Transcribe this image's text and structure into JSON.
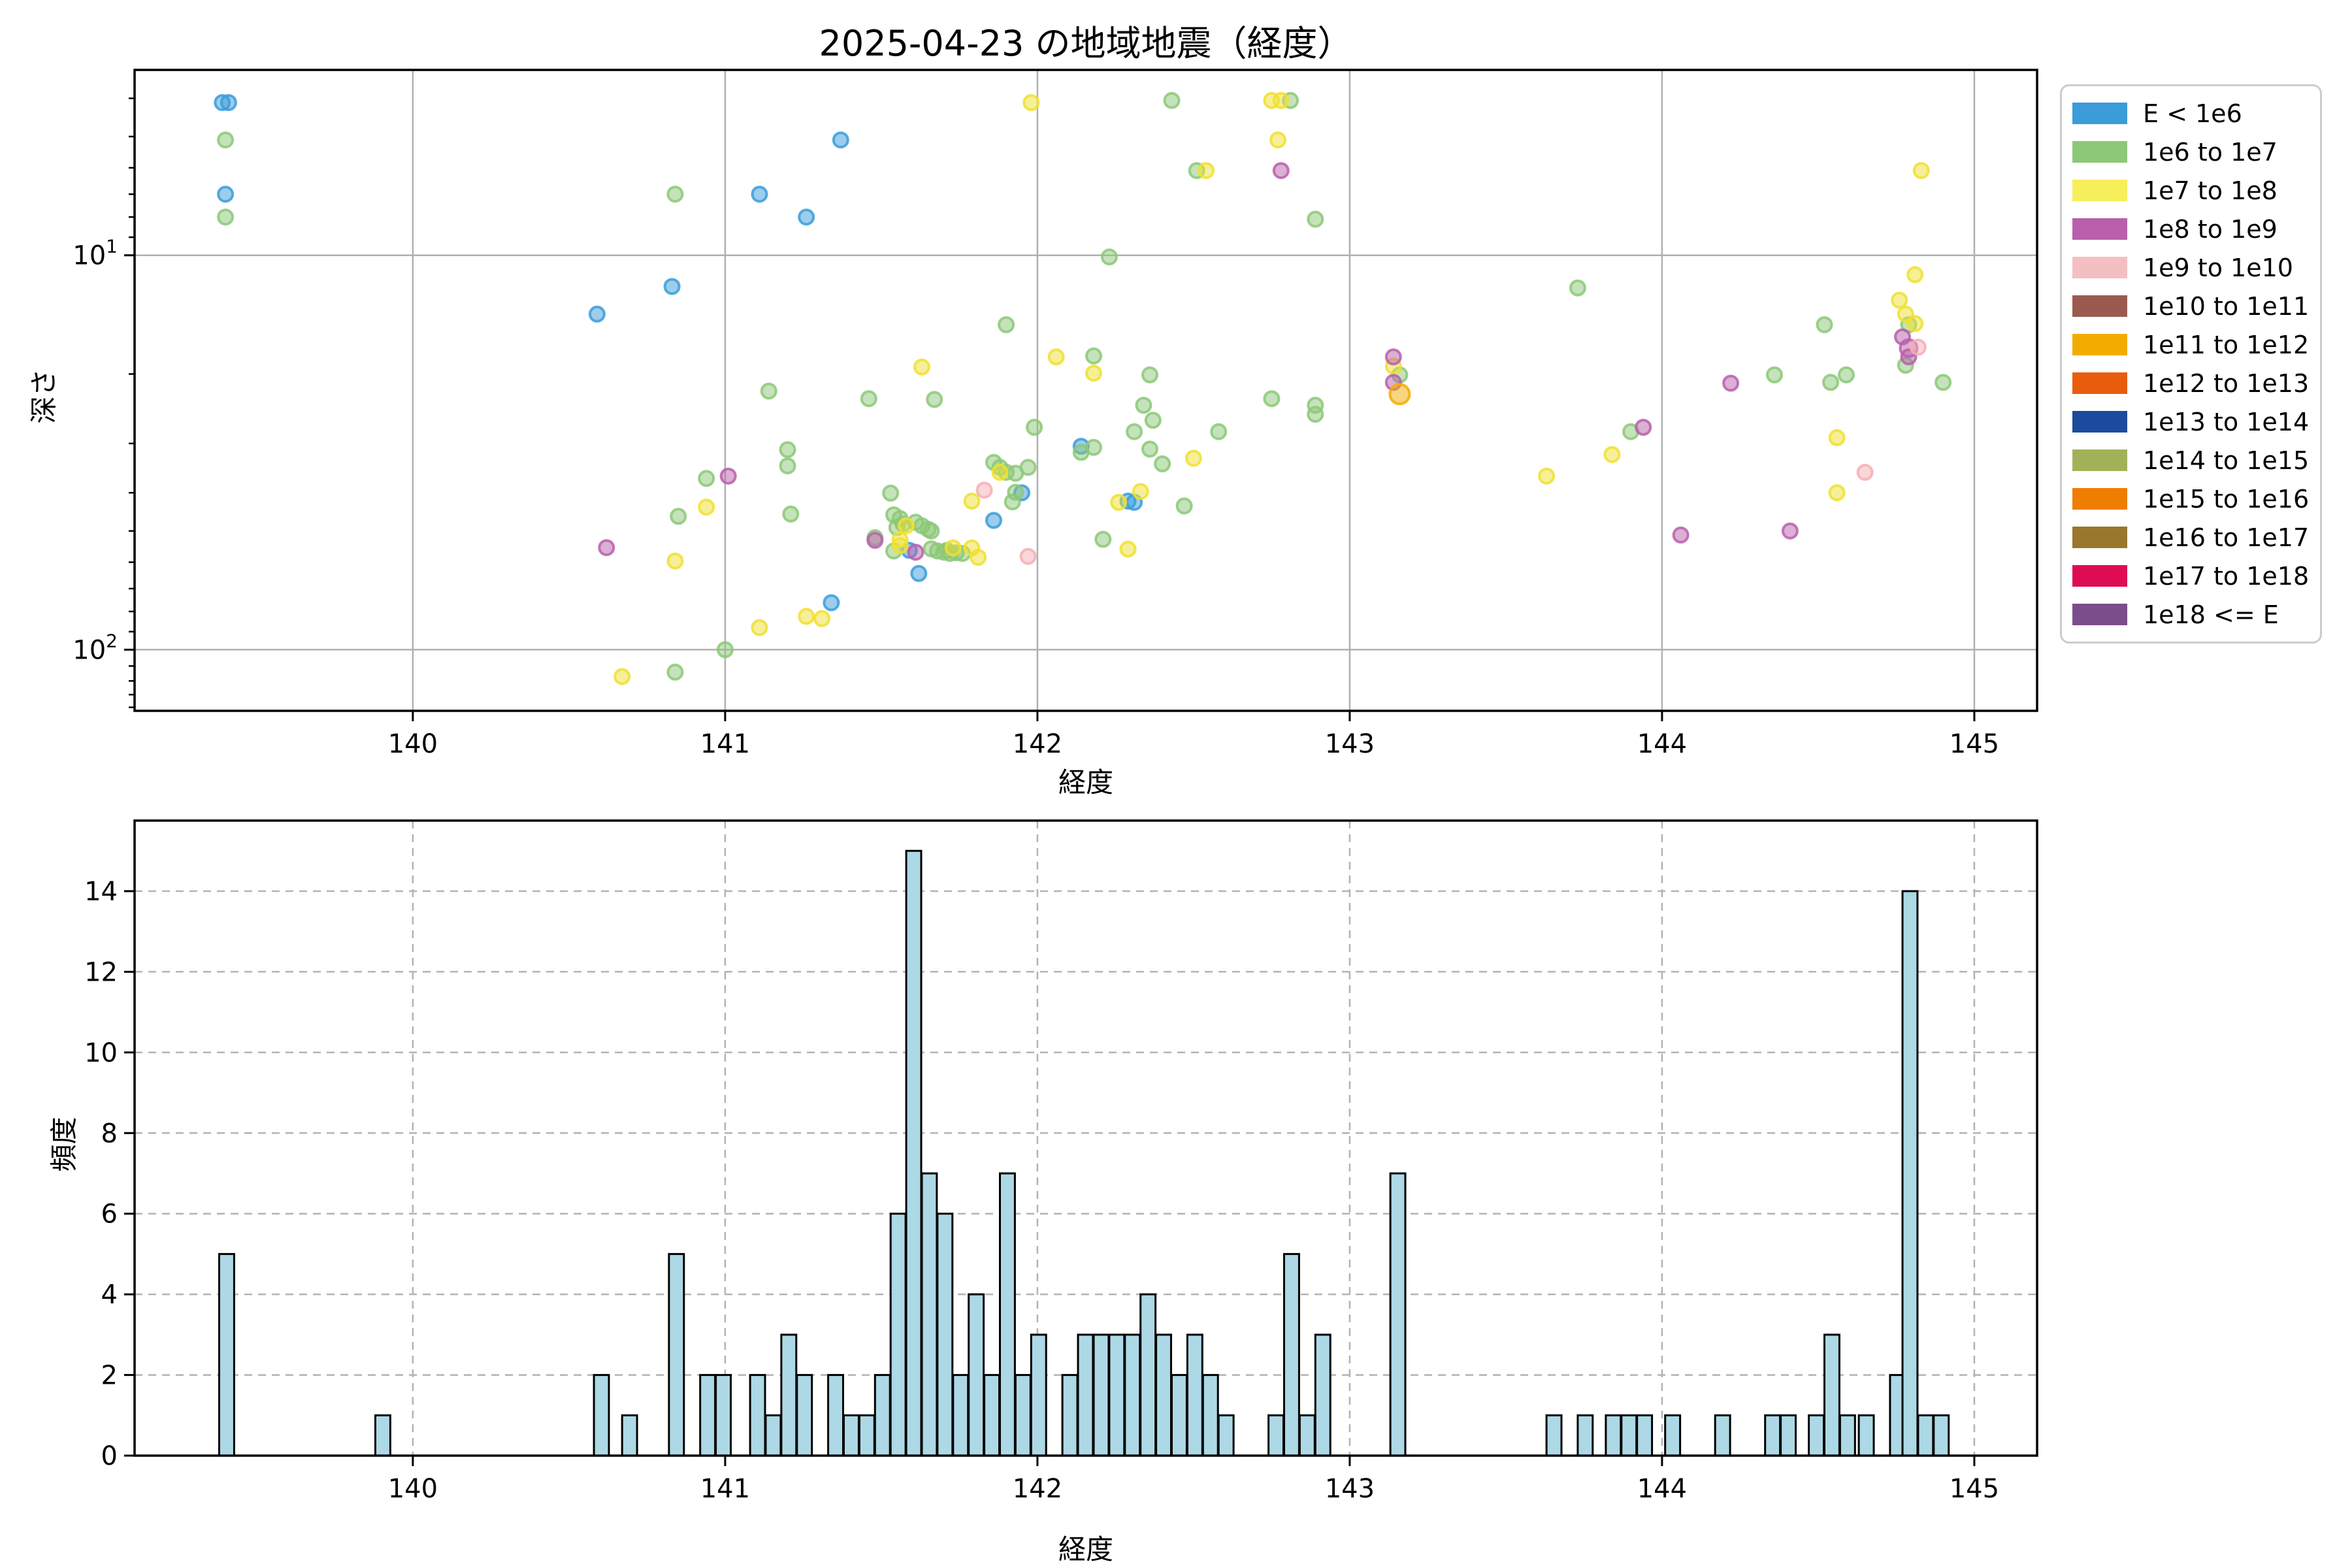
{
  "figure": {
    "title": "2025-04-23 の地域地震（経度）",
    "background": "#ffffff"
  },
  "scatter": {
    "xlabel": "経度",
    "ylabel": "深さ"
  },
  "hist": {
    "xlabel": "経度",
    "ylabel": "頻度"
  },
  "legend": {
    "items": [
      {
        "label": "E < 1e6",
        "color": "#3B9CD9"
      },
      {
        "label": "1e6 to 1e7",
        "color": "#8CC878"
      },
      {
        "label": "1e7 to 1e8",
        "color": "#F7EE5C"
      },
      {
        "label": "1e8 to 1e9",
        "color": "#B95FAC"
      },
      {
        "label": "1e9 to 1e10",
        "color": "#F4BFC2"
      },
      {
        "label": "1e10 to 1e11",
        "color": "#9B5A50"
      },
      {
        "label": "1e11 to 1e12",
        "color": "#F2AC00"
      },
      {
        "label": "1e12 to 1e13",
        "color": "#E85D0D"
      },
      {
        "label": "1e13 to 1e14",
        "color": "#1C4A9C"
      },
      {
        "label": "1e14 to 1e15",
        "color": "#A2B259"
      },
      {
        "label": "1e15 to 1e16",
        "color": "#EF7D00"
      },
      {
        "label": "1e16 to 1e17",
        "color": "#99782D"
      },
      {
        "label": "1e17 to 1e18",
        "color": "#DE0C54"
      },
      {
        "label": "1e18 <= E",
        "color": "#7B4D8B"
      }
    ]
  },
  "chart_data": [
    {
      "type": "scatter",
      "title": "2025-04-23 の地域地震（経度）",
      "xlabel": "経度",
      "ylabel": "深さ",
      "xlim": [
        139.109,
        145.201
      ],
      "y_log": true,
      "y_inverted": true,
      "ylim_exp": [
        0.53,
        2.155
      ],
      "x_ticks": [
        140,
        141,
        142,
        143,
        144,
        145
      ],
      "y_major_ticks": [
        {
          "exp": 1,
          "label": "10¹"
        },
        {
          "exp": 2,
          "label": "10²"
        }
      ],
      "y_minor_tick_values": [
        4,
        5,
        6,
        7,
        8,
        9,
        20,
        30,
        40,
        50,
        60,
        70,
        80,
        90,
        110,
        120,
        130,
        140
      ],
      "grid": "solid",
      "legend_position": "upper right outside",
      "series": [
        {
          "name": "E < 1e6",
          "color": "#3B9CD9",
          "points": [
            [
              139.39,
              4.1
            ],
            [
              139.41,
              4.1
            ],
            [
              139.4,
              7.0
            ],
            [
              140.59,
              14.1
            ],
            [
              140.83,
              12.0
            ],
            [
              141.11,
              7.0
            ],
            [
              141.26,
              8.0
            ],
            [
              141.37,
              5.1
            ],
            [
              141.34,
              76.0
            ],
            [
              141.59,
              56.0
            ],
            [
              141.62,
              64.1
            ],
            [
              141.86,
              47.0
            ],
            [
              141.95,
              40.0
            ],
            [
              142.14,
              30.5
            ],
            [
              142.29,
              42.0
            ],
            [
              142.31,
              42.3
            ]
          ]
        },
        {
          "name": "1e6 to 1e7",
          "color": "#8CC878",
          "points": [
            [
              139.4,
              5.1
            ],
            [
              139.4,
              8.0
            ],
            [
              140.84,
              7.0
            ],
            [
              140.85,
              45.9
            ],
            [
              140.84,
              114
            ],
            [
              140.94,
              36.8
            ],
            [
              141.0,
              100
            ],
            [
              141.14,
              22.1
            ],
            [
              141.2,
              31.1
            ],
            [
              141.2,
              34.2
            ],
            [
              141.21,
              45.3
            ],
            [
              141.46,
              23.1
            ],
            [
              141.48,
              52.0
            ],
            [
              141.53,
              40.1
            ],
            [
              141.54,
              45.5
            ],
            [
              141.55,
              49.0
            ],
            [
              141.56,
              46.5
            ],
            [
              141.57,
              48.0
            ],
            [
              141.54,
              56.2
            ],
            [
              141.61,
              47.5
            ],
            [
              141.63,
              48.5
            ],
            [
              141.65,
              49.5
            ],
            [
              141.66,
              50.0
            ],
            [
              141.66,
              55.5
            ],
            [
              141.68,
              56.2
            ],
            [
              141.7,
              56.6
            ],
            [
              141.71,
              56.0
            ],
            [
              141.72,
              57.0
            ],
            [
              141.74,
              56.8
            ],
            [
              141.76,
              57.0
            ],
            [
              141.67,
              23.2
            ],
            [
              141.86,
              33.5
            ],
            [
              141.88,
              34.5
            ],
            [
              141.9,
              35.5
            ],
            [
              141.93,
              35.7
            ],
            [
              141.97,
              34.5
            ],
            [
              141.9,
              15.0
            ],
            [
              141.99,
              27.3
            ],
            [
              141.92,
              42.2
            ],
            [
              141.93,
              39.9
            ],
            [
              142.14,
              31.6
            ],
            [
              142.18,
              30.7
            ],
            [
              142.21,
              52.5
            ],
            [
              142.18,
              18.0
            ],
            [
              142.23,
              10.1
            ],
            [
              142.34,
              24.0
            ],
            [
              142.36,
              20.1
            ],
            [
              142.36,
              31.0
            ],
            [
              142.37,
              26.2
            ],
            [
              142.31,
              28.0
            ],
            [
              142.4,
              33.8
            ],
            [
              142.43,
              4.05
            ],
            [
              142.47,
              43.2
            ],
            [
              142.51,
              6.1
            ],
            [
              142.58,
              28.0
            ],
            [
              142.75,
              23.1
            ],
            [
              142.81,
              4.05
            ],
            [
              142.89,
              8.1
            ],
            [
              142.89,
              24.0
            ],
            [
              142.89,
              25.3
            ],
            [
              143.16,
              20.1
            ],
            [
              143.73,
              12.1
            ],
            [
              143.9,
              28.0
            ],
            [
              144.36,
              20.1
            ],
            [
              144.52,
              15.0
            ],
            [
              144.54,
              21.0
            ],
            [
              144.59,
              20.1
            ],
            [
              144.79,
              15.0
            ],
            [
              144.78,
              19.0
            ],
            [
              144.9,
              21.0
            ]
          ]
        },
        {
          "name": "1e7 to 1e8",
          "color": "#F0E030",
          "points": [
            [
              140.67,
              117
            ],
            [
              140.84,
              59.6
            ],
            [
              140.94,
              43.5
            ],
            [
              141.11,
              87.9
            ],
            [
              141.26,
              82.3
            ],
            [
              141.31,
              83.4
            ],
            [
              141.58,
              48.5
            ],
            [
              141.56,
              52.6
            ],
            [
              141.56,
              54.5
            ],
            [
              141.63,
              19.2
            ],
            [
              141.73,
              55.2
            ],
            [
              141.79,
              55.2
            ],
            [
              141.81,
              58.3
            ],
            [
              141.79,
              42.0
            ],
            [
              141.88,
              35.5
            ],
            [
              141.98,
              4.1
            ],
            [
              142.06,
              18.1
            ],
            [
              142.18,
              19.9
            ],
            [
              142.26,
              42.3
            ],
            [
              142.29,
              55.6
            ],
            [
              142.33,
              39.7
            ],
            [
              142.5,
              32.7
            ],
            [
              142.54,
              6.1
            ],
            [
              142.75,
              4.05
            ],
            [
              142.78,
              4.05
            ],
            [
              142.77,
              5.1
            ],
            [
              143.14,
              19.1
            ],
            [
              143.63,
              36.3
            ],
            [
              143.84,
              32.0
            ],
            [
              144.56,
              29.0
            ],
            [
              144.56,
              40.0
            ],
            [
              144.76,
              13.0
            ],
            [
              144.78,
              14.1
            ],
            [
              144.81,
              11.2
            ],
            [
              144.81,
              14.9
            ],
            [
              144.83,
              6.1
            ]
          ]
        },
        {
          "name": "1e8 to 1e9",
          "color": "#B95FAC",
          "points": [
            [
              140.62,
              55.1
            ],
            [
              141.01,
              36.3
            ],
            [
              141.48,
              52.8
            ],
            [
              141.61,
              56.6
            ],
            [
              142.78,
              6.1
            ],
            [
              143.14,
              18.1
            ],
            [
              143.14,
              21.0
            ],
            [
              143.94,
              27.3
            ],
            [
              144.06,
              51.2
            ],
            [
              144.22,
              21.1
            ],
            [
              144.41,
              50.0
            ],
            [
              144.77,
              16.1
            ],
            [
              144.79,
              17.2,
              13
            ],
            [
              144.79,
              18.1
            ]
          ]
        },
        {
          "name": "1e9 to 1e10",
          "color": "#F4AFB4",
          "points": [
            [
              141.83,
              39.4
            ],
            [
              141.97,
              58.0
            ],
            [
              144.65,
              35.5
            ],
            [
              144.82,
              17.1
            ]
          ]
        },
        {
          "name": "1e10 to 1e11",
          "color": "#9B5A50",
          "points": []
        },
        {
          "name": "1e11 to 1e12",
          "color": "#F2AC00",
          "points": [
            [
              143.16,
              22.5,
              15
            ]
          ]
        },
        {
          "name": "1e12 to 1e13",
          "color": "#E85D0D",
          "points": []
        },
        {
          "name": "1e13 to 1e14",
          "color": "#1C4A9C",
          "points": []
        },
        {
          "name": "1e14 to 1e15",
          "color": "#A2B259",
          "points": []
        },
        {
          "name": "1e15 to 1e16",
          "color": "#EF7D00",
          "points": []
        },
        {
          "name": "1e16 to 1e17",
          "color": "#99782D",
          "points": []
        },
        {
          "name": "1e17 to 1e18",
          "color": "#DE0C54",
          "points": []
        },
        {
          "name": "1e18 <= E",
          "color": "#7B4D8B",
          "points": []
        }
      ]
    },
    {
      "type": "bar",
      "xlabel": "経度",
      "ylabel": "頻度",
      "xlim": [
        139.109,
        145.201
      ],
      "ylim": [
        0,
        15.75
      ],
      "x_ticks": [
        140,
        141,
        142,
        143,
        144,
        145
      ],
      "y_ticks": [
        0,
        2,
        4,
        6,
        8,
        10,
        12,
        14
      ],
      "grid": "dashed",
      "bar_color": "#ADD8E6",
      "bar_edge_color": "#000000",
      "bin_width": 0.048,
      "bars": [
        [
          139.38,
          5
        ],
        [
          139.88,
          1
        ],
        [
          140.58,
          2
        ],
        [
          140.67,
          1
        ],
        [
          140.82,
          5
        ],
        [
          140.92,
          2
        ],
        [
          140.97,
          2
        ],
        [
          141.08,
          2
        ],
        [
          141.13,
          1
        ],
        [
          141.18,
          3
        ],
        [
          141.23,
          2
        ],
        [
          141.33,
          2
        ],
        [
          141.38,
          1
        ],
        [
          141.43,
          1
        ],
        [
          141.48,
          2
        ],
        [
          141.53,
          6
        ],
        [
          141.58,
          15
        ],
        [
          141.63,
          7
        ],
        [
          141.68,
          6
        ],
        [
          141.73,
          2
        ],
        [
          141.78,
          4
        ],
        [
          141.83,
          2
        ],
        [
          141.88,
          7
        ],
        [
          141.93,
          2
        ],
        [
          141.98,
          3
        ],
        [
          142.08,
          2
        ],
        [
          142.13,
          3
        ],
        [
          142.18,
          3
        ],
        [
          142.23,
          3
        ],
        [
          142.28,
          3
        ],
        [
          142.33,
          4
        ],
        [
          142.38,
          3
        ],
        [
          142.43,
          2
        ],
        [
          142.48,
          3
        ],
        [
          142.53,
          2
        ],
        [
          142.58,
          1
        ],
        [
          142.74,
          1
        ],
        [
          142.79,
          5
        ],
        [
          142.84,
          1
        ],
        [
          142.89,
          3
        ],
        [
          143.13,
          7
        ],
        [
          143.63,
          1
        ],
        [
          143.73,
          1
        ],
        [
          143.82,
          1
        ],
        [
          143.87,
          1
        ],
        [
          143.92,
          1
        ],
        [
          144.01,
          1
        ],
        [
          144.17,
          1
        ],
        [
          144.33,
          1
        ],
        [
          144.38,
          1
        ],
        [
          144.47,
          1
        ],
        [
          144.52,
          3
        ],
        [
          144.57,
          1
        ],
        [
          144.63,
          1
        ],
        [
          144.73,
          2
        ],
        [
          144.77,
          14
        ],
        [
          144.82,
          1
        ],
        [
          144.87,
          1
        ]
      ]
    }
  ]
}
